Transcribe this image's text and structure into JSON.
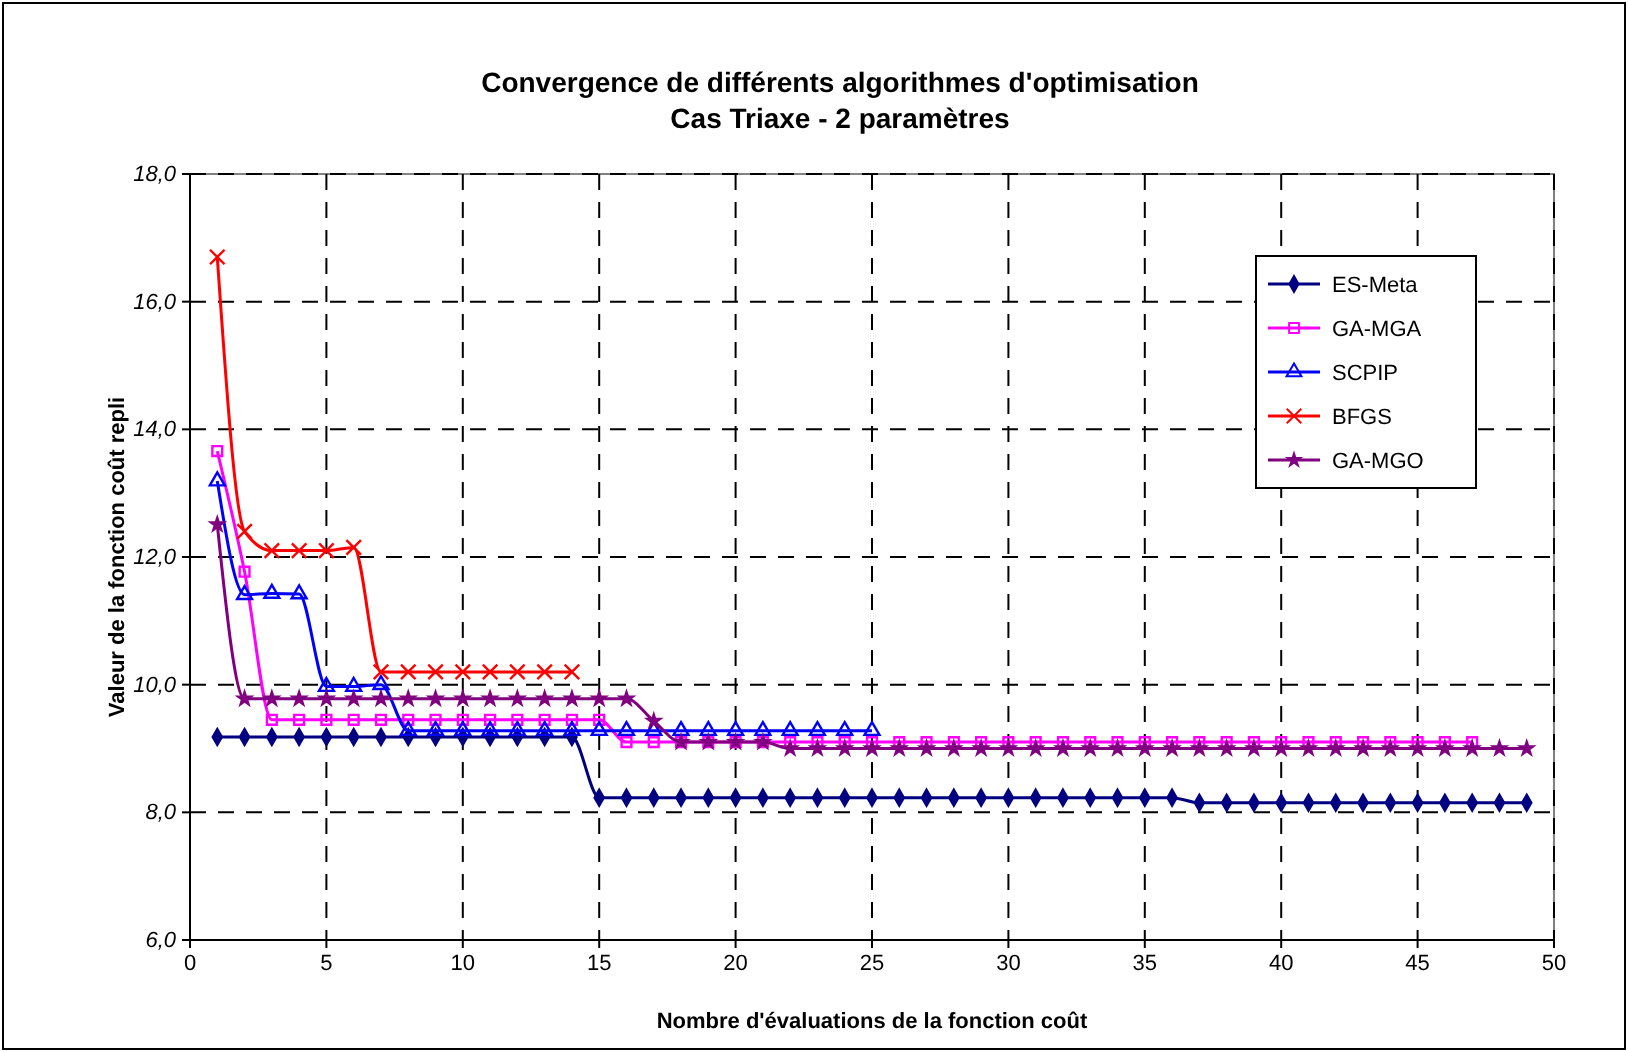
{
  "chart_data": {
    "type": "line",
    "title": "Convergence de différents algorithmes d'optimisation",
    "subtitle": "Cas Triaxe - 2 paramètres",
    "xlabel": "Nombre d'évaluations de la fonction coût",
    "ylabel": "Valeur de la fonction coût repli",
    "x": [
      1,
      2,
      3,
      4,
      5,
      6,
      7,
      8,
      9,
      10,
      11,
      12,
      13,
      14,
      15,
      16,
      17,
      18,
      19,
      20,
      21,
      22,
      23,
      24,
      25,
      26,
      27,
      28,
      29,
      30,
      31,
      32,
      33,
      34,
      35,
      36,
      37,
      38,
      39,
      40,
      41,
      42,
      43,
      44,
      45,
      46,
      47,
      48,
      49
    ],
    "xlim": [
      0,
      50
    ],
    "xticks": [
      0,
      5,
      10,
      15,
      20,
      25,
      30,
      35,
      40,
      45,
      50
    ],
    "ylim": [
      6,
      18
    ],
    "yticks": [
      {
        "value": 6,
        "label": "6,0"
      },
      {
        "value": 8,
        "label": "8,0"
      },
      {
        "value": 10,
        "label": "10,0"
      },
      {
        "value": 12,
        "label": "12,0"
      },
      {
        "value": 14,
        "label": "14,0"
      },
      {
        "value": 16,
        "label": "16,0"
      },
      {
        "value": 18,
        "label": "18,0"
      }
    ],
    "grid": true,
    "legend": "top right",
    "line_style": "solid",
    "series": [
      {
        "name": "ES-Meta",
        "color": "#000080",
        "marker": "diamond",
        "values": [
          9.18,
          9.18,
          9.18,
          9.18,
          9.18,
          9.18,
          9.18,
          9.18,
          9.18,
          9.18,
          9.18,
          9.18,
          9.18,
          9.18,
          8.23,
          8.23,
          8.23,
          8.23,
          8.23,
          8.23,
          8.23,
          8.23,
          8.23,
          8.23,
          8.23,
          8.23,
          8.23,
          8.23,
          8.23,
          8.23,
          8.23,
          8.23,
          8.23,
          8.23,
          8.23,
          8.23,
          8.15,
          8.15,
          8.15,
          8.15,
          8.15,
          8.15,
          8.15,
          8.15,
          8.15,
          8.15,
          8.15,
          8.15,
          8.15
        ]
      },
      {
        "name": "GA-MGA",
        "color": "#ff00ff",
        "marker": "square",
        "values": [
          13.66,
          11.77,
          9.45,
          9.45,
          9.45,
          9.45,
          9.45,
          9.45,
          9.45,
          9.45,
          9.45,
          9.45,
          9.45,
          9.45,
          9.45,
          9.1,
          9.1,
          9.1,
          9.1,
          9.1,
          9.1,
          9.1,
          9.1,
          9.1,
          9.1,
          9.1,
          9.1,
          9.1,
          9.1,
          9.1,
          9.1,
          9.1,
          9.1,
          9.1,
          9.1,
          9.1,
          9.1,
          9.1,
          9.1,
          9.1,
          9.1,
          9.1,
          9.1,
          9.1,
          9.1,
          9.1,
          9.1,
          null,
          null
        ]
      },
      {
        "name": "SCPIP",
        "color": "#0000ff",
        "marker": "triangle",
        "values": [
          13.19,
          11.41,
          11.43,
          11.42,
          9.97,
          9.97,
          10.0,
          9.28,
          9.28,
          9.28,
          9.28,
          9.28,
          9.28,
          9.28,
          9.28,
          9.28,
          9.28,
          9.28,
          9.28,
          9.28,
          9.28,
          9.28,
          9.28,
          9.28,
          9.28,
          null,
          null,
          null,
          null,
          null,
          null,
          null,
          null,
          null,
          null,
          null,
          null,
          null,
          null,
          null,
          null,
          null,
          null,
          null,
          null,
          null,
          null,
          null,
          null
        ]
      },
      {
        "name": "BFGS",
        "color": "#ff0000",
        "marker": "cross",
        "values": [
          16.7,
          12.4,
          12.1,
          12.1,
          12.1,
          12.15,
          10.2,
          10.2,
          10.2,
          10.2,
          10.2,
          10.2,
          10.2,
          10.2,
          null,
          null,
          null,
          null,
          null,
          null,
          null,
          null,
          null,
          null,
          null,
          null,
          null,
          null,
          null,
          null,
          null,
          null,
          null,
          null,
          null,
          null,
          null,
          null,
          null,
          null,
          null,
          null,
          null,
          null,
          null,
          null,
          null,
          null,
          null
        ]
      },
      {
        "name": "GA-MGO",
        "color": "#800080",
        "marker": "star",
        "values": [
          12.51,
          9.78,
          9.78,
          9.78,
          9.78,
          9.78,
          9.78,
          9.78,
          9.78,
          9.78,
          9.78,
          9.78,
          9.78,
          9.78,
          9.78,
          9.78,
          9.43,
          9.1,
          9.1,
          9.1,
          9.1,
          9.0,
          9.0,
          9.0,
          9.0,
          9.0,
          9.0,
          9.0,
          9.0,
          9.0,
          9.0,
          9.0,
          9.0,
          9.0,
          9.0,
          9.0,
          9.0,
          9.0,
          9.0,
          9.0,
          9.0,
          9.0,
          9.0,
          9.0,
          9.0,
          9.0,
          9.0,
          9.0,
          9.0
        ]
      }
    ]
  }
}
